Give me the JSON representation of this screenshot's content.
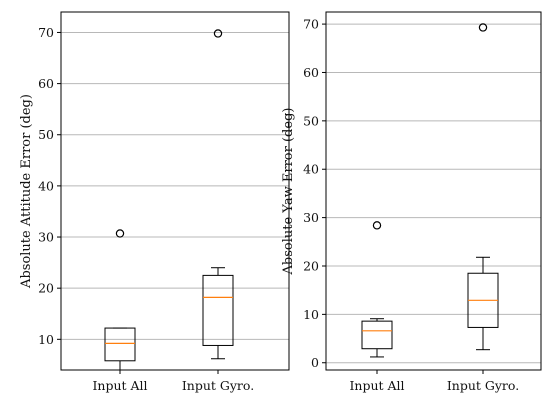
{
  "chart_data": [
    {
      "type": "box",
      "ylabel": "Absolute Attitude Error (deg)",
      "xlabel": "",
      "ylim": [
        4,
        74
      ],
      "yticks": [
        10,
        20,
        30,
        40,
        50,
        60,
        70
      ],
      "grid": "horizontal",
      "categories": [
        "Input All",
        "Input Gyro."
      ],
      "boxes": [
        {
          "whisker_low": 4.0,
          "q1": 5.8,
          "median": 9.2,
          "q3": 12.2,
          "whisker_high": 12.2,
          "outliers": [
            30.7
          ]
        },
        {
          "whisker_low": 6.2,
          "q1": 8.8,
          "median": 18.2,
          "q3": 22.5,
          "whisker_high": 24.0,
          "outliers": [
            69.8
          ]
        }
      ]
    },
    {
      "type": "box",
      "ylabel": "Absolute Yaw Error (deg)",
      "xlabel": "",
      "ylim": [
        -1.5,
        72.5
      ],
      "yticks": [
        0,
        10,
        20,
        30,
        40,
        50,
        60,
        70
      ],
      "grid": "horizontal",
      "categories": [
        "Input All",
        "Input Gyro."
      ],
      "boxes": [
        {
          "whisker_low": 1.2,
          "q1": 2.9,
          "median": 6.6,
          "q3": 8.6,
          "whisker_high": 9.1,
          "outliers": [
            28.4
          ]
        },
        {
          "whisker_low": 2.7,
          "q1": 7.3,
          "median": 12.9,
          "q3": 18.5,
          "whisker_high": 21.8,
          "outliers": [
            69.3
          ]
        }
      ]
    }
  ]
}
